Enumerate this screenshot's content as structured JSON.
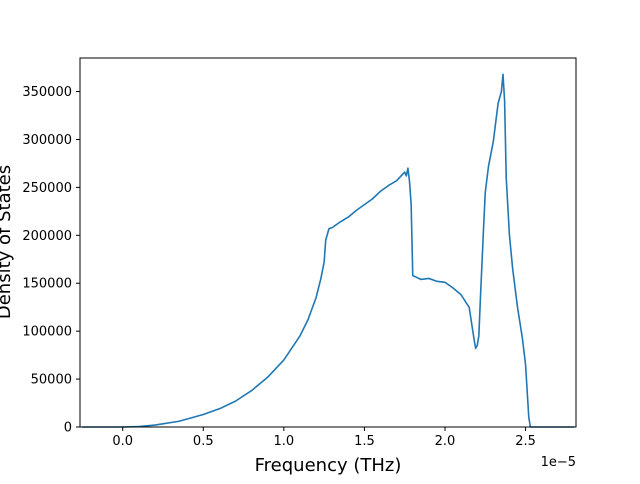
{
  "chart_data": {
    "type": "line",
    "title": "",
    "xlabel": "Frequency (THz)",
    "ylabel": "Density of States",
    "x_offset_label": "1e−5",
    "xlim": [
      -0.265,
      2.813
    ],
    "ylim": [
      0,
      385000
    ],
    "x_ticks": [
      0.0,
      0.5,
      1.0,
      1.5,
      2.0,
      2.5
    ],
    "x_tick_labels": [
      "0.0",
      "0.5",
      "1.0",
      "1.5",
      "2.0",
      "2.5"
    ],
    "y_ticks": [
      0,
      50000,
      100000,
      150000,
      200000,
      250000,
      300000,
      350000
    ],
    "y_tick_labels": [
      "0",
      "50000",
      "100000",
      "150000",
      "200000",
      "250000",
      "300000",
      "350000"
    ],
    "grid": false,
    "legend": "none",
    "colors": {
      "line": "#1f77b4",
      "axes": "#000000",
      "background": "#ffffff"
    },
    "series": [
      {
        "x": [
          -0.25,
          0.0,
          0.1,
          0.2,
          0.35,
          0.5,
          0.6,
          0.7,
          0.8,
          0.9,
          1.0,
          1.1,
          1.15,
          1.2,
          1.23,
          1.25,
          1.26,
          1.28,
          1.3,
          1.35,
          1.4,
          1.45,
          1.5,
          1.55,
          1.6,
          1.65,
          1.7,
          1.75,
          1.76,
          1.77,
          1.78,
          1.79,
          1.8,
          1.85,
          1.9,
          1.95,
          2.0,
          2.05,
          2.1,
          2.13,
          2.15,
          2.18,
          2.19,
          2.2,
          2.21,
          2.22,
          2.24,
          2.25,
          2.27,
          2.3,
          2.32,
          2.33,
          2.35,
          2.36,
          2.37,
          2.38,
          2.4,
          2.42,
          2.45,
          2.48,
          2.5,
          2.52,
          2.53,
          2.54,
          2.55,
          2.6,
          2.7,
          2.8
        ],
        "y": [
          0,
          0,
          500,
          2000,
          6000,
          13000,
          19000,
          27000,
          38000,
          52000,
          70000,
          95000,
          112000,
          135000,
          155000,
          172000,
          195000,
          207000,
          208000,
          214000,
          219000,
          226000,
          232000,
          238000,
          246000,
          252000,
          257000,
          266000,
          262000,
          270000,
          256000,
          232000,
          158000,
          154000,
          155000,
          152000,
          151000,
          145000,
          138000,
          130000,
          125000,
          92000,
          82000,
          85000,
          95000,
          135000,
          210000,
          245000,
          272000,
          298000,
          325000,
          338000,
          350000,
          368000,
          340000,
          260000,
          200000,
          165000,
          125000,
          93000,
          65000,
          10000,
          0,
          0,
          0,
          0,
          0,
          0
        ]
      }
    ]
  }
}
